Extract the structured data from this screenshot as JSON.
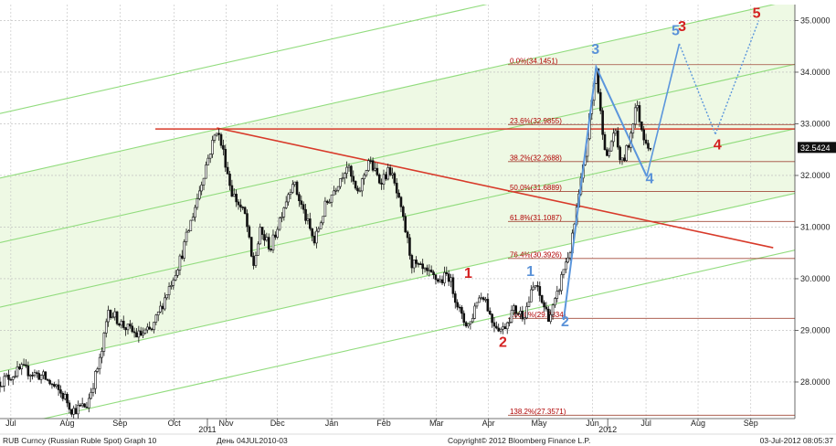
{
  "chart_data": {
    "type": "candlestick",
    "security": "RUB Curncy (Russian Ruble Spot)",
    "graph": "Graph 10",
    "current_price": "32.5424",
    "y_axis": {
      "ylim": [
        27.3,
        35.1
      ],
      "ticks": [
        "28.0000",
        "29.0000",
        "30.0000",
        "31.0000",
        "32.0000",
        "33.0000",
        "34.0000",
        "35.0000"
      ],
      "position": "right"
    },
    "x_axis": {
      "month_labels": [
        "Jul",
        "Aug",
        "Sep",
        "Oct",
        "Nov",
        "Dec",
        "Jan",
        "Feb",
        "Mar",
        "Apr",
        "May",
        "Jun",
        "Jul",
        "Aug",
        "Sep"
      ],
      "year_labels": [
        "2011",
        "2012"
      ]
    },
    "grid": "dashed gray",
    "price_path": [
      [
        0,
        28.0
      ],
      [
        3,
        28.25
      ],
      [
        6,
        28.1
      ],
      [
        9,
        27.7
      ],
      [
        10,
        27.45
      ],
      [
        12,
        27.55
      ],
      [
        14,
        28.5
      ],
      [
        15,
        29.4
      ],
      [
        17,
        29.1
      ],
      [
        19,
        28.9
      ],
      [
        21,
        29.0
      ],
      [
        23,
        29.7
      ],
      [
        25,
        30.4
      ],
      [
        27,
        31.4
      ],
      [
        28.5,
        32.2
      ],
      [
        30,
        32.9
      ],
      [
        31,
        32.4
      ],
      [
        32,
        31.7
      ],
      [
        34,
        31.2
      ],
      [
        35,
        30.2
      ],
      [
        36,
        30.9
      ],
      [
        37.5,
        30.6
      ],
      [
        39,
        31.3
      ],
      [
        40.5,
        31.9
      ],
      [
        42,
        31.3
      ],
      [
        43.5,
        30.7
      ],
      [
        45,
        31.4
      ],
      [
        46.5,
        31.8
      ],
      [
        48,
        32.2
      ],
      [
        49.5,
        31.6
      ],
      [
        51,
        32.3
      ],
      [
        52.5,
        31.9
      ],
      [
        54,
        32.1
      ],
      [
        55,
        31.6
      ],
      [
        56,
        31.0
      ],
      [
        57,
        30.3
      ],
      [
        59,
        30.1
      ],
      [
        61,
        29.95
      ],
      [
        62,
        30.1
      ],
      [
        63,
        29.65
      ],
      [
        64,
        29.2
      ],
      [
        65,
        29.1
      ],
      [
        66,
        29.6
      ],
      [
        67,
        29.7
      ],
      [
        68,
        29.2
      ],
      [
        69.5,
        29.0
      ],
      [
        71,
        29.4
      ],
      [
        72.5,
        29.3
      ],
      [
        74,
        29.9
      ],
      [
        75,
        29.55
      ],
      [
        76,
        29.25
      ],
      [
        77,
        29.6
      ],
      [
        78,
        30.2
      ],
      [
        79,
        30.6
      ],
      [
        80,
        31.5
      ],
      [
        81,
        32.4
      ],
      [
        81.5,
        33.0
      ],
      [
        82.5,
        34.1
      ],
      [
        83,
        33.3
      ],
      [
        84,
        32.3
      ],
      [
        85,
        32.9
      ],
      [
        86,
        32.2
      ],
      [
        87,
        32.6
      ],
      [
        88,
        33.4
      ],
      [
        89,
        32.8
      ],
      [
        90,
        32.54
      ]
    ],
    "fibonacci_levels": [
      {
        "label": "0.0%(34.1451)",
        "value": 34.1451
      },
      {
        "label": "23.6%(32.9855)",
        "value": 32.9855
      },
      {
        "label": "38.2%(32.2688)",
        "value": 32.2688
      },
      {
        "label": "50.0%(31.6889)",
        "value": 31.6889
      },
      {
        "label": "61.8%(31.1087)",
        "value": 31.1087
      },
      {
        "label": "76.4%(30.3926)",
        "value": 30.3926
      },
      {
        "label": "100.0%(29.2334)",
        "value": 29.2334
      },
      {
        "label": "138.2%(27.3571)",
        "value": 27.3571
      }
    ],
    "horizontal_line": {
      "value": 32.9,
      "color": "#d83a2a"
    },
    "trend_line": {
      "from": [
        30,
        32.92
      ],
      "to": [
        107,
        30.6
      ],
      "color": "#d83a2a"
    },
    "channel": {
      "slope_per_unit": 0.0314,
      "line_intercepts_at_zero": [
        27.1,
        28.2,
        29.45,
        30.7,
        31.95,
        33.2
      ],
      "shade_between": [
        1,
        4
      ],
      "shade_color": "#eef9e4",
      "line_color": "#92dc7e"
    },
    "blue_wave_path": [
      [
        78,
        29.2
      ],
      [
        82.5,
        34.1
      ],
      [
        89.5,
        31.98
      ]
    ],
    "blue_wave_projection": [
      [
        89.5,
        31.98
      ],
      [
        94,
        34.55
      ],
      [
        99,
        32.8
      ],
      [
        105,
        35.0
      ]
    ],
    "wave_labels": [
      {
        "text": "1",
        "color": "#d42020",
        "x": 64.8,
        "y": 30.02
      },
      {
        "text": "2",
        "color": "#d42020",
        "x": 69.6,
        "y": 28.68
      },
      {
        "text": "3",
        "color": "#d42020",
        "x": 94.4,
        "y": 34.8
      },
      {
        "text": "4",
        "color": "#d42020",
        "x": 99.3,
        "y": 32.5
      },
      {
        "text": "5",
        "color": "#d42020",
        "x": 104.7,
        "y": 35.05
      },
      {
        "text": "1",
        "color": "#5a92d8",
        "x": 73.4,
        "y": 30.05
      },
      {
        "text": "2",
        "color": "#5a92d8",
        "x": 78.2,
        "y": 29.08
      },
      {
        "text": "3",
        "color": "#5a92d8",
        "x": 82.4,
        "y": 34.35
      },
      {
        "text": "4",
        "color": "#5a92d8",
        "x": 89.9,
        "y": 31.85
      },
      {
        "text": "5",
        "color": "#5a92d8",
        "x": 93.5,
        "y": 34.72
      }
    ],
    "colors": {
      "candle": "#111111",
      "blue_wave": "#5b96dc",
      "fib_line": "#a24a3a",
      "price_box": "#111111"
    }
  },
  "footer": {
    "left": "RUB Curncy (Russian Ruble Spot) Graph 10",
    "period": "День 04JUL2010-03",
    "copyright": "Copyright© 2012 Bloomberg Finance L.P.",
    "timestamp": "03-Jul-2012 08:05:37"
  }
}
